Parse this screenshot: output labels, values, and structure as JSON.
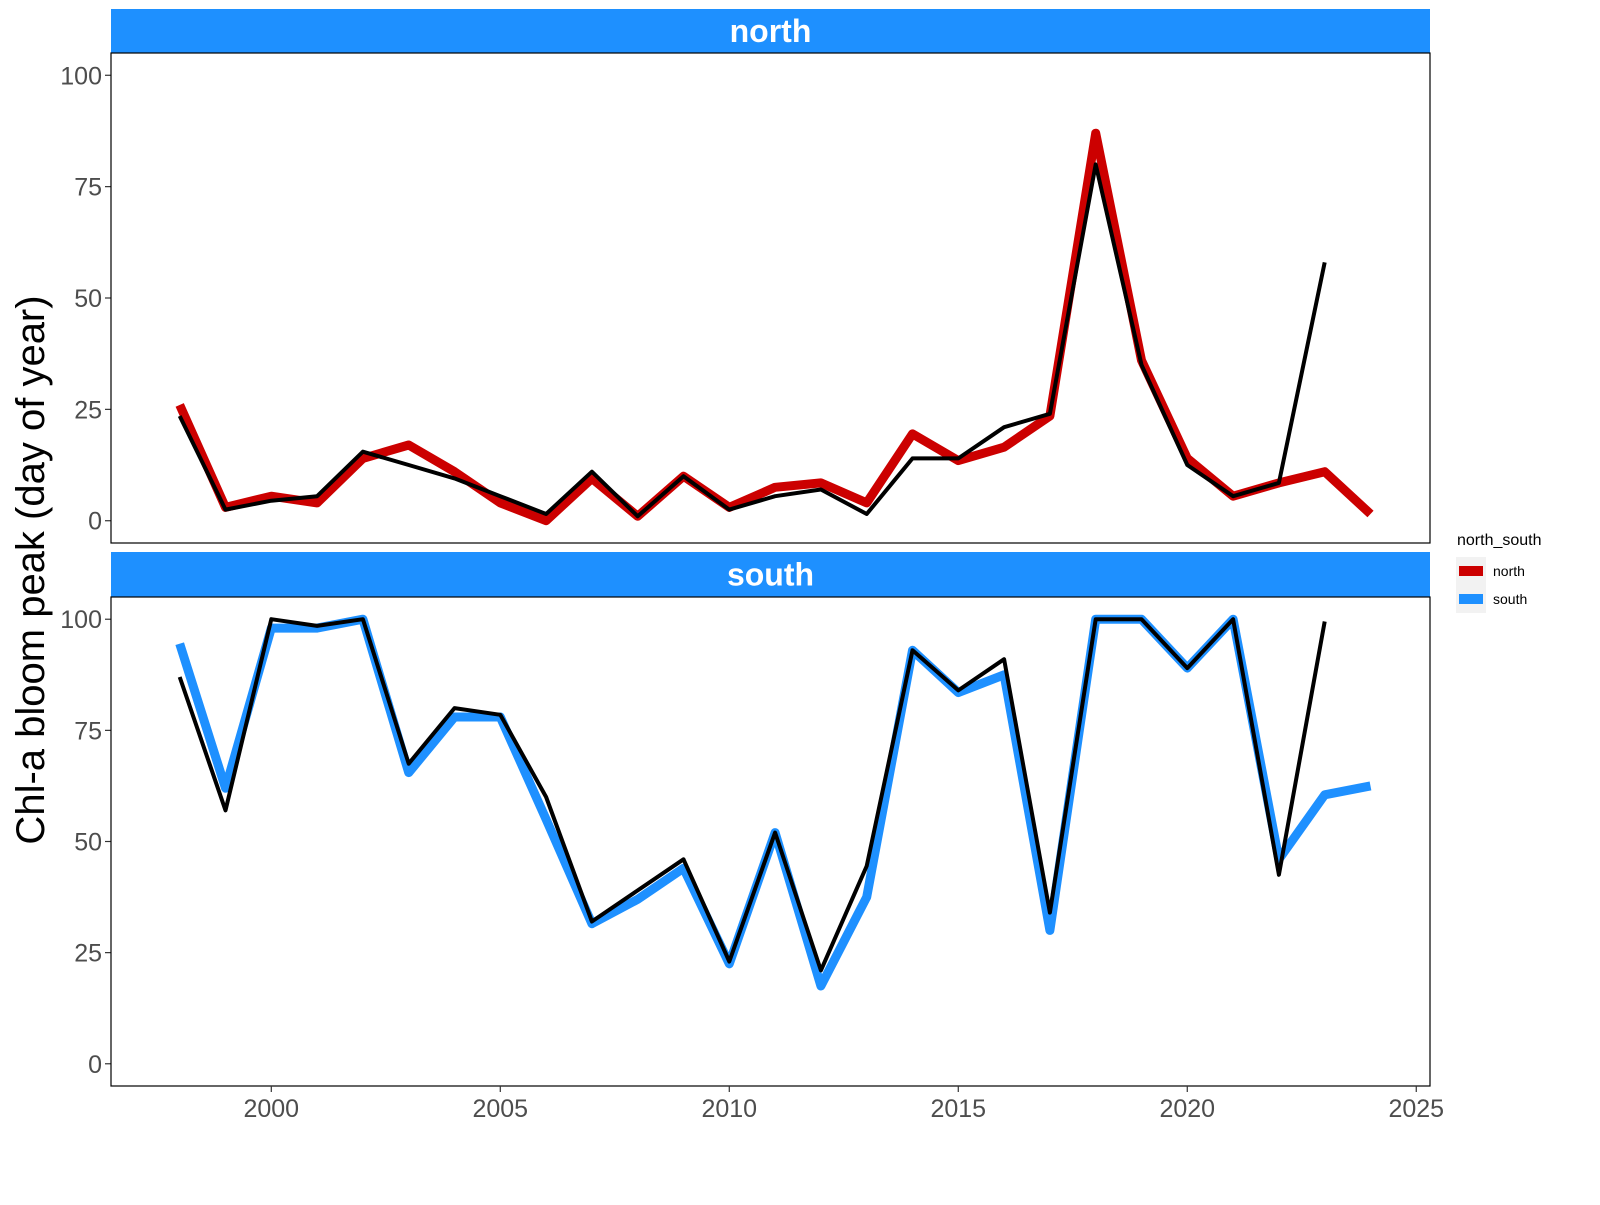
{
  "chart_data": {
    "type": "line",
    "ylabel": "Chl-a bloom peak (day of year)",
    "xlabel": "",
    "xlim": [
      1996.5,
      2025.3
    ],
    "ylim": [
      -5,
      105
    ],
    "x_ticks": [
      2000,
      2005,
      2010,
      2015,
      2020,
      2025
    ],
    "y_ticks": [
      0,
      25,
      50,
      75,
      100
    ],
    "grid": false,
    "legend": {
      "title": "north_south",
      "position": "right",
      "entries": [
        {
          "label": "north",
          "color": "#cc0000"
        },
        {
          "label": "south",
          "color": "#1e90ff"
        }
      ]
    },
    "panels": [
      {
        "label": "north",
        "colored_series": {
          "name": "north",
          "color": "#cc0000",
          "x": [
            1998,
            1999,
            2000,
            2001,
            2002,
            2003,
            2004,
            2005,
            2006,
            2007,
            2008,
            2009,
            2010,
            2011,
            2012,
            2013,
            2014,
            2015,
            2016,
            2017,
            2018,
            2019,
            2020,
            2021,
            2022,
            2023,
            2024
          ],
          "y": [
            26,
            3,
            5.5,
            4,
            14,
            17,
            11,
            4,
            0,
            9.5,
            1,
            10,
            3,
            7.5,
            8.5,
            4,
            19.5,
            13.5,
            16.5,
            23.5,
            87,
            36,
            14,
            5.5,
            8.5,
            11,
            1.5
          ]
        },
        "black_series": {
          "color": "#000000",
          "x": [
            1998,
            1999,
            2000,
            2001,
            2002,
            2003,
            2004,
            2005,
            2006,
            2007,
            2008,
            2009,
            2010,
            2011,
            2012,
            2013,
            2014,
            2015,
            2016,
            2017,
            2018,
            2019,
            2020,
            2021,
            2022,
            2023
          ],
          "y": [
            23.5,
            2.5,
            4.5,
            5.5,
            15.5,
            12.5,
            9.5,
            5.5,
            1.5,
            11,
            1,
            10,
            2.5,
            5.5,
            7,
            1.5,
            14,
            14,
            21,
            24,
            80,
            35,
            12.5,
            5.5,
            8.5,
            58
          ]
        }
      },
      {
        "label": "south",
        "colored_series": {
          "name": "south",
          "color": "#1e90ff",
          "x": [
            1998,
            1999,
            2000,
            2001,
            2002,
            2003,
            2004,
            2005,
            2006,
            2007,
            2008,
            2009,
            2010,
            2011,
            2012,
            2013,
            2014,
            2015,
            2016,
            2017,
            2018,
            2019,
            2020,
            2021,
            2022,
            2023,
            2024
          ],
          "y": [
            94.5,
            62,
            98,
            98,
            100,
            65.5,
            78,
            78,
            55,
            31.5,
            37,
            44,
            22.5,
            52,
            17.5,
            37.5,
            93,
            83.5,
            87.5,
            30,
            100,
            100,
            89,
            100,
            46,
            60.5,
            62.5
          ]
        },
        "black_series": {
          "color": "#000000",
          "x": [
            1998,
            1999,
            2000,
            2001,
            2002,
            2003,
            2004,
            2005,
            2006,
            2007,
            2008,
            2009,
            2010,
            2011,
            2012,
            2013,
            2014,
            2015,
            2016,
            2017,
            2018,
            2019,
            2020,
            2021,
            2022,
            2023
          ],
          "y": [
            87,
            57,
            100,
            98.5,
            100,
            67.5,
            80,
            78.5,
            60,
            32,
            39,
            46,
            23,
            52,
            21,
            44.5,
            93,
            84,
            91,
            34,
            100,
            100,
            89,
            100,
            42.5,
            99.5
          ]
        }
      }
    ]
  }
}
